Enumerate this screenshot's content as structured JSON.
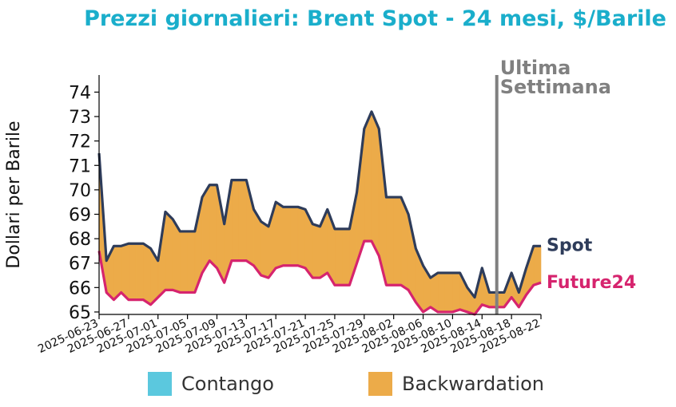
{
  "chart_data": {
    "type": "area",
    "title": "Prezzi giornalieri: Brent Spot - 24 mesi, $/Barile",
    "ylabel": "Dollari per Barile",
    "xlabel": "",
    "ylim": [
      64.9,
      74.7
    ],
    "yticks": [
      65,
      66,
      67,
      68,
      69,
      70,
      71,
      72,
      73,
      74
    ],
    "xlim": [
      "2025-06-23",
      "2025-08-22"
    ],
    "xticks": [
      "2025-06-23",
      "2025-06-27",
      "2025-07-01",
      "2025-07-05",
      "2025-07-09",
      "2025-07-13",
      "2025-07-17",
      "2025-07-21",
      "2025-07-25",
      "2025-07-29",
      "2025-08-02",
      "2025-08-06",
      "2025-08-10",
      "2025-08-14",
      "2025-08-18",
      "2025-08-22"
    ],
    "marker": {
      "date": "2025-08-16",
      "label_line1": "Ultima",
      "label_line2": "Settimana",
      "color": "#808080"
    },
    "series": [
      {
        "name": "Spot",
        "color": "#2e3c5a",
        "points": [
          [
            "2025-06-23",
            71.5
          ],
          [
            "2025-06-24",
            67.1
          ],
          [
            "2025-06-25",
            67.7
          ],
          [
            "2025-06-26",
            67.7
          ],
          [
            "2025-06-27",
            67.8
          ],
          [
            "2025-06-28",
            67.8
          ],
          [
            "2025-06-29",
            67.8
          ],
          [
            "2025-06-30",
            67.6
          ],
          [
            "2025-07-01",
            67.1
          ],
          [
            "2025-07-02",
            69.1
          ],
          [
            "2025-07-03",
            68.8
          ],
          [
            "2025-07-04",
            68.3
          ],
          [
            "2025-07-05",
            68.3
          ],
          [
            "2025-07-06",
            68.3
          ],
          [
            "2025-07-07",
            69.7
          ],
          [
            "2025-07-08",
            70.2
          ],
          [
            "2025-07-09",
            70.2
          ],
          [
            "2025-07-10",
            68.6
          ],
          [
            "2025-07-11",
            70.4
          ],
          [
            "2025-07-12",
            70.4
          ],
          [
            "2025-07-13",
            70.4
          ],
          [
            "2025-07-14",
            69.2
          ],
          [
            "2025-07-15",
            68.7
          ],
          [
            "2025-07-16",
            68.5
          ],
          [
            "2025-07-17",
            69.5
          ],
          [
            "2025-07-18",
            69.3
          ],
          [
            "2025-07-19",
            69.3
          ],
          [
            "2025-07-20",
            69.3
          ],
          [
            "2025-07-21",
            69.2
          ],
          [
            "2025-07-22",
            68.6
          ],
          [
            "2025-07-23",
            68.5
          ],
          [
            "2025-07-24",
            69.2
          ],
          [
            "2025-07-25",
            68.4
          ],
          [
            "2025-07-26",
            68.4
          ],
          [
            "2025-07-27",
            68.4
          ],
          [
            "2025-07-28",
            69.9
          ],
          [
            "2025-07-29",
            72.5
          ],
          [
            "2025-07-30",
            73.2
          ],
          [
            "2025-07-31",
            72.5
          ],
          [
            "2025-08-01",
            69.7
          ],
          [
            "2025-08-02",
            69.7
          ],
          [
            "2025-08-03",
            69.7
          ],
          [
            "2025-08-04",
            69.0
          ],
          [
            "2025-08-05",
            67.6
          ],
          [
            "2025-08-06",
            66.9
          ],
          [
            "2025-08-07",
            66.4
          ],
          [
            "2025-08-08",
            66.6
          ],
          [
            "2025-08-09",
            66.6
          ],
          [
            "2025-08-10",
            66.6
          ],
          [
            "2025-08-11",
            66.6
          ],
          [
            "2025-08-12",
            66.0
          ],
          [
            "2025-08-13",
            65.6
          ],
          [
            "2025-08-14",
            66.8
          ],
          [
            "2025-08-15",
            65.8
          ],
          [
            "2025-08-16",
            65.8
          ],
          [
            "2025-08-17",
            65.8
          ],
          [
            "2025-08-18",
            66.6
          ],
          [
            "2025-08-19",
            65.8
          ],
          [
            "2025-08-20",
            66.8
          ],
          [
            "2025-08-21",
            67.7
          ],
          [
            "2025-08-22",
            67.7
          ]
        ]
      },
      {
        "name": "Future24",
        "color": "#d6246e",
        "points": [
          [
            "2025-06-23",
            67.5
          ],
          [
            "2025-06-24",
            65.8
          ],
          [
            "2025-06-25",
            65.5
          ],
          [
            "2025-06-26",
            65.8
          ],
          [
            "2025-06-27",
            65.5
          ],
          [
            "2025-06-28",
            65.5
          ],
          [
            "2025-06-29",
            65.5
          ],
          [
            "2025-06-30",
            65.3
          ],
          [
            "2025-07-01",
            65.6
          ],
          [
            "2025-07-02",
            65.9
          ],
          [
            "2025-07-03",
            65.9
          ],
          [
            "2025-07-04",
            65.8
          ],
          [
            "2025-07-05",
            65.8
          ],
          [
            "2025-07-06",
            65.8
          ],
          [
            "2025-07-07",
            66.6
          ],
          [
            "2025-07-08",
            67.1
          ],
          [
            "2025-07-09",
            66.8
          ],
          [
            "2025-07-10",
            66.2
          ],
          [
            "2025-07-11",
            67.1
          ],
          [
            "2025-07-12",
            67.1
          ],
          [
            "2025-07-13",
            67.1
          ],
          [
            "2025-07-14",
            66.9
          ],
          [
            "2025-07-15",
            66.5
          ],
          [
            "2025-07-16",
            66.4
          ],
          [
            "2025-07-17",
            66.8
          ],
          [
            "2025-07-18",
            66.9
          ],
          [
            "2025-07-19",
            66.9
          ],
          [
            "2025-07-20",
            66.9
          ],
          [
            "2025-07-21",
            66.8
          ],
          [
            "2025-07-22",
            66.4
          ],
          [
            "2025-07-23",
            66.4
          ],
          [
            "2025-07-24",
            66.6
          ],
          [
            "2025-07-25",
            66.1
          ],
          [
            "2025-07-26",
            66.1
          ],
          [
            "2025-07-27",
            66.1
          ],
          [
            "2025-07-28",
            67.0
          ],
          [
            "2025-07-29",
            67.9
          ],
          [
            "2025-07-30",
            67.9
          ],
          [
            "2025-07-31",
            67.3
          ],
          [
            "2025-08-01",
            66.1
          ],
          [
            "2025-08-02",
            66.1
          ],
          [
            "2025-08-03",
            66.1
          ],
          [
            "2025-08-04",
            65.9
          ],
          [
            "2025-08-05",
            65.4
          ],
          [
            "2025-08-06",
            65.0
          ],
          [
            "2025-08-07",
            65.2
          ],
          [
            "2025-08-08",
            65.0
          ],
          [
            "2025-08-09",
            65.0
          ],
          [
            "2025-08-10",
            65.0
          ],
          [
            "2025-08-11",
            65.1
          ],
          [
            "2025-08-12",
            65.0
          ],
          [
            "2025-08-13",
            64.9
          ],
          [
            "2025-08-14",
            65.3
          ],
          [
            "2025-08-15",
            65.2
          ],
          [
            "2025-08-16",
            65.2
          ],
          [
            "2025-08-17",
            65.2
          ],
          [
            "2025-08-18",
            65.6
          ],
          [
            "2025-08-19",
            65.2
          ],
          [
            "2025-08-20",
            65.7
          ],
          [
            "2025-08-21",
            66.1
          ],
          [
            "2025-08-22",
            66.2
          ]
        ]
      }
    ],
    "fills": {
      "contango_color": "#5bc8de",
      "backwardation_color": "#ecab49"
    },
    "legend": {
      "position": "bottom",
      "items": [
        {
          "label": "Contango",
          "color": "#5bc8de"
        },
        {
          "label": "Backwardation",
          "color": "#ecab49"
        }
      ]
    },
    "grid": false
  }
}
